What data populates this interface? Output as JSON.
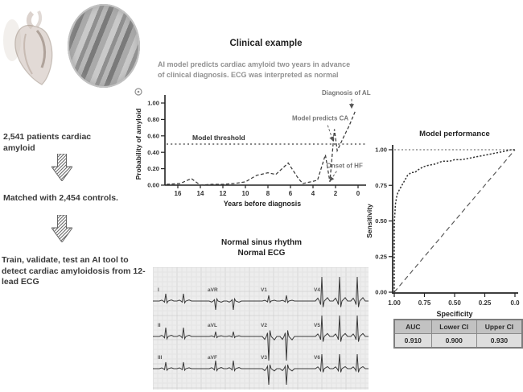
{
  "pipeline": {
    "step1": "2,541 patients cardiac amyloid",
    "step2": "Matched with 2,454 controls.",
    "step3": "Train, validate, test an AI tool to detect cardiac amyloidosis from 12-lead ECG"
  },
  "clinical_example": {
    "title": "Clinical example",
    "description": "AI model predicts cardiac amyloid two years in advance of clinical diagnosis. ECG was interpreted as normal"
  },
  "ecg_panel": {
    "title_line1": "Normal sinus rhythm",
    "title_line2": "Normal ECG",
    "lead_rows": [
      [
        "I",
        "aVR",
        "V1",
        "V4"
      ],
      [
        "II",
        "aVL",
        "V2",
        "V5"
      ],
      [
        "III",
        "aVF",
        "V3",
        "V6"
      ]
    ]
  },
  "results_table": {
    "headers": [
      "AUC",
      "Lower CI",
      "Upper CI"
    ],
    "values": [
      "0.910",
      "0.900",
      "0.930"
    ]
  },
  "colors": {
    "ink": "#2e2e2e",
    "muted": "#8f8f8f",
    "trace": "#3a3a3a"
  },
  "chart_data": [
    {
      "id": "probability_timeline",
      "type": "line",
      "title": "",
      "xlabel": "Years before diagnosis",
      "ylabel": "Probability of amyloid",
      "x_ticks": [
        16,
        14,
        12,
        10,
        8,
        6,
        4,
        2,
        0
      ],
      "y_tick_labels": [
        "0.00",
        "0.20",
        "0.40",
        "0.60",
        "0.80",
        "1.00"
      ],
      "y_tick_values": [
        0,
        0.2,
        0.4,
        0.6,
        0.8,
        1.0
      ],
      "xlim": [
        17,
        0
      ],
      "ylim": [
        0,
        1.0
      ],
      "x_reversed": true,
      "grid": false,
      "threshold": {
        "value": 0.5,
        "label": "Model threshold"
      },
      "series": [
        {
          "name": "model probability",
          "style": "dashed",
          "points": [
            [
              17,
              0.01
            ],
            [
              15.8,
              0.02
            ],
            [
              14.8,
              0.08
            ],
            [
              14,
              0.0
            ],
            [
              13,
              0.01
            ],
            [
              12,
              0.01
            ],
            [
              11,
              0.02
            ],
            [
              10,
              0.04
            ],
            [
              9,
              0.12
            ],
            [
              8,
              0.15
            ],
            [
              7.3,
              0.13
            ],
            [
              6.2,
              0.27
            ],
            [
              5.3,
              0.08
            ],
            [
              4.9,
              0.02
            ],
            [
              4.2,
              0.04
            ],
            [
              3.6,
              0.06
            ],
            [
              2.9,
              0.37
            ],
            [
              2.5,
              0.04
            ],
            [
              2.1,
              0.68
            ],
            [
              1.85,
              0.42
            ],
            [
              1.3,
              0.58
            ],
            [
              0.8,
              0.72
            ],
            [
              0.25,
              0.9
            ]
          ]
        }
      ],
      "annotations": [
        {
          "label": "Diagnosis of AL",
          "x": 1.05,
          "y": 1.1,
          "arrow": [
            0.57,
            1.05,
            0.57,
            0.95
          ]
        },
        {
          "label": "Model predicts CA",
          "x": 3.35,
          "y": 0.79,
          "arrow": [
            2.7,
            0.73,
            2.25,
            0.55
          ]
        },
        {
          "label": "Onset of HF",
          "x": 1.2,
          "y": 0.21,
          "arrow": [
            1.9,
            0.17,
            2.45,
            0.06
          ]
        }
      ]
    },
    {
      "id": "roc",
      "type": "line",
      "title": "Model performance",
      "xlabel": "Specificity",
      "ylabel": "Sensitivity",
      "x_tick_labels": [
        "1.00",
        "0.75",
        "0.50",
        "0.25",
        "0.0"
      ],
      "x_tick_values": [
        1,
        0.75,
        0.5,
        0.25,
        0
      ],
      "y_tick_labels": [
        "0.00",
        "0.25",
        "0.50",
        "0.75",
        "1.00"
      ],
      "y_tick_values": [
        0,
        0.25,
        0.5,
        0.75,
        1.0
      ],
      "x_reversed": true,
      "diagonal_reference": true,
      "top_reference": 1.0,
      "series": [
        {
          "name": "ROC curve",
          "style": "dotted",
          "points": [
            [
              1,
              0
            ],
            [
              1,
              0.48
            ],
            [
              0.99,
              0.62
            ],
            [
              0.98,
              0.67
            ],
            [
              0.97,
              0.7
            ],
            [
              0.95,
              0.73
            ],
            [
              0.93,
              0.76
            ],
            [
              0.91,
              0.79
            ],
            [
              0.89,
              0.82
            ],
            [
              0.86,
              0.84
            ],
            [
              0.83,
              0.84
            ],
            [
              0.8,
              0.86
            ],
            [
              0.76,
              0.88
            ],
            [
              0.72,
              0.89
            ],
            [
              0.66,
              0.9
            ],
            [
              0.6,
              0.92
            ],
            [
              0.54,
              0.92
            ],
            [
              0.5,
              0.93
            ],
            [
              0.44,
              0.93
            ],
            [
              0.38,
              0.94
            ],
            [
              0.32,
              0.95
            ],
            [
              0.26,
              0.96
            ],
            [
              0.2,
              0.97
            ],
            [
              0.14,
              0.98
            ],
            [
              0.08,
              0.99
            ],
            [
              0.03,
              1.0
            ],
            [
              0,
              1.0
            ]
          ]
        }
      ],
      "auc": {
        "value": "0.910",
        "lower_ci": "0.900",
        "upper_ci": "0.930"
      }
    }
  ]
}
